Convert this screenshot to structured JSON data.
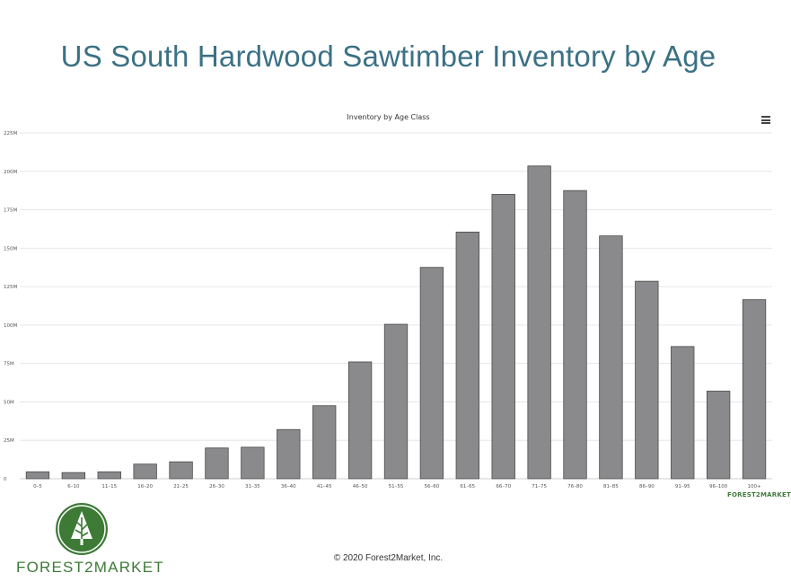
{
  "slide": {
    "title": "US South Hardwood Sawtimber Inventory by Age",
    "copyright": "© 2020 Forest2Market, Inc.",
    "brand_name": "FOREST2MARKET",
    "chart_logo": "FOREST2MARKET"
  },
  "icons": {
    "menu": "hamburger-menu-icon",
    "brand": "tree-icon"
  },
  "colors": {
    "title": "#3b7185",
    "bar": "#8a8a8c",
    "bar_stroke": "#4a4a4a",
    "brand_green": "#3d7a36"
  },
  "chart_data": {
    "type": "bar",
    "title": "Inventory by Age Class",
    "xlabel": "",
    "ylabel": "",
    "categories": [
      "0–5",
      "6–10",
      "11–15",
      "16–20",
      "21–25",
      "26–30",
      "31–35",
      "36–40",
      "41–45",
      "46–50",
      "51–55",
      "56–60",
      "61–65",
      "66–70",
      "71–75",
      "76–80",
      "81–85",
      "86–90",
      "91–95",
      "96–100",
      "100+"
    ],
    "values": [
      4.5,
      4,
      4.5,
      9.5,
      11,
      20,
      20.5,
      32,
      47.5,
      76,
      100.5,
      137.5,
      160.5,
      185,
      203.5,
      187.5,
      158,
      128.5,
      86,
      57,
      116.5
    ],
    "ylim": [
      0,
      225
    ],
    "yticks": [
      0,
      25,
      50,
      75,
      100,
      125,
      150,
      175,
      200,
      225
    ],
    "ytick_labels": [
      "0",
      "25M",
      "50M",
      "75M",
      "100M",
      "125M",
      "150M",
      "175M",
      "200M",
      "225M"
    ],
    "grid": true,
    "legend": false
  }
}
